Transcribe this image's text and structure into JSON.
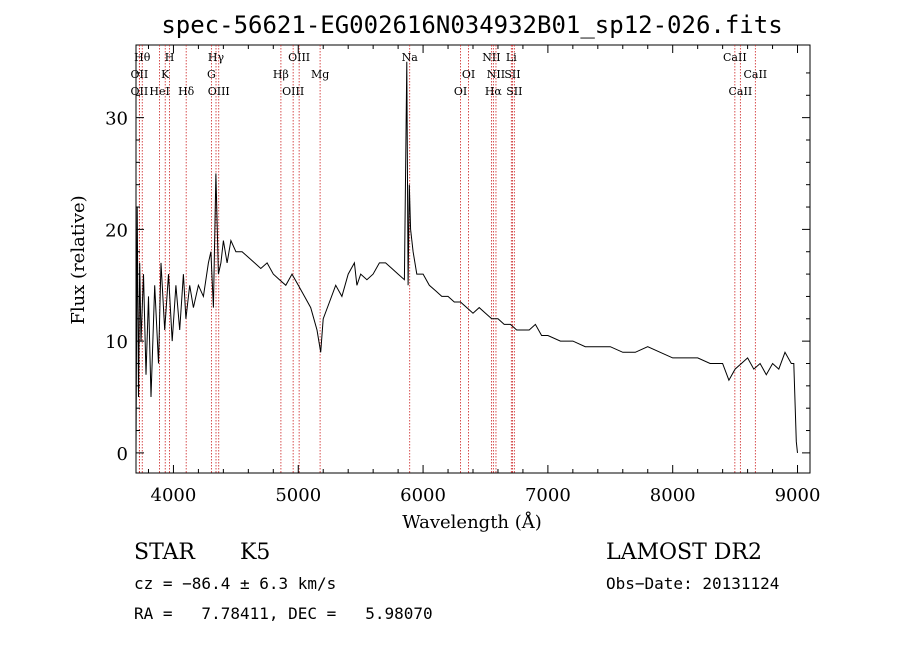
{
  "chart_data": {
    "type": "line",
    "title": "spec-56621-EG002616N034932B01_sp12-026.fits",
    "xlabel": "Wavelength (Å)",
    "ylabel": "Flux (relative)",
    "xlim": [
      3700,
      9100
    ],
    "ylim": [
      -1.8,
      36.5
    ],
    "x_ticks": [
      4000,
      5000,
      6000,
      7000,
      8000,
      9000
    ],
    "x_tick_labels": [
      "4000",
      "5000",
      "6000",
      "7000",
      "8000",
      "9000"
    ],
    "y_ticks": [
      0,
      10,
      20,
      30
    ],
    "y_tick_labels": [
      "0",
      "10",
      "20",
      "30"
    ],
    "grid": false,
    "series": [
      {
        "color": "#000000",
        "x": [
          3700,
          3710,
          3720,
          3730,
          3740,
          3760,
          3780,
          3800,
          3820,
          3850,
          3880,
          3900,
          3930,
          3960,
          3990,
          4020,
          4050,
          4080,
          4100,
          4130,
          4160,
          4200,
          4240,
          4280,
          4300,
          4320,
          4340,
          4360,
          4380,
          4400,
          4430,
          4460,
          4500,
          4550,
          4600,
          4650,
          4700,
          4750,
          4800,
          4850,
          4900,
          4950,
          5000,
          5050,
          5100,
          5150,
          5180,
          5200,
          5250,
          5300,
          5350,
          5400,
          5450,
          5470,
          5500,
          5550,
          5600,
          5650,
          5700,
          5750,
          5800,
          5850,
          5870,
          5880,
          5890,
          5900,
          5920,
          5950,
          6000,
          6050,
          6100,
          6150,
          6200,
          6250,
          6300,
          6350,
          6400,
          6450,
          6500,
          6550,
          6600,
          6650,
          6700,
          6750,
          6800,
          6850,
          6900,
          6950,
          7000,
          7100,
          7200,
          7300,
          7400,
          7500,
          7600,
          7700,
          7800,
          7900,
          8000,
          8100,
          8200,
          8300,
          8400,
          8450,
          8500,
          8550,
          8600,
          8650,
          8700,
          8750,
          8800,
          8850,
          8900,
          8950,
          8970,
          8990,
          9000
        ],
        "y": [
          0,
          22,
          5,
          17,
          10,
          16,
          7,
          14,
          5,
          15,
          8,
          17,
          11,
          16,
          10,
          15,
          11,
          16,
          12,
          15,
          13,
          15,
          14,
          17,
          18,
          13,
          25,
          16,
          17,
          19,
          17,
          19,
          18,
          18,
          17.5,
          17,
          16.5,
          17,
          16,
          15.5,
          15,
          16,
          15,
          14,
          13,
          11,
          9,
          12,
          13.5,
          15,
          14,
          16,
          17,
          15,
          16,
          15.5,
          16,
          17,
          17,
          16.5,
          16,
          15.5,
          35,
          15,
          24,
          20,
          18,
          16,
          16,
          15,
          14.5,
          14,
          14,
          13.5,
          13.5,
          13,
          12.5,
          13,
          12.5,
          12,
          12,
          11.5,
          11.5,
          11,
          11,
          11,
          11.5,
          10.5,
          10.5,
          10,
          10,
          9.5,
          9.5,
          9.5,
          9,
          9,
          9.5,
          9,
          8.5,
          8.5,
          8.5,
          8,
          8,
          6.5,
          7.5,
          8,
          8.5,
          7.5,
          8,
          7,
          8,
          7.5,
          9,
          8,
          8,
          1,
          0
        ]
      }
    ],
    "lines": [
      {
        "w": 3727,
        "lbl": "OII",
        "row": 1
      },
      {
        "w": 3727,
        "lbl": "OII",
        "row": 2
      },
      {
        "w": 3750,
        "lbl": "Hθ",
        "row": 0
      },
      {
        "w": 3889,
        "lbl": "HeI",
        "row": 2
      },
      {
        "w": 3934,
        "lbl": "K",
        "row": 1
      },
      {
        "w": 3969,
        "lbl": "H",
        "row": 0
      },
      {
        "w": 4102,
        "lbl": "Hδ",
        "row": 2
      },
      {
        "w": 4304,
        "lbl": "G",
        "row": 1
      },
      {
        "w": 4341,
        "lbl": "Hγ",
        "row": 0
      },
      {
        "w": 4363,
        "lbl": "OIII",
        "row": 2
      },
      {
        "w": 4861,
        "lbl": "Hβ",
        "row": 1
      },
      {
        "w": 4959,
        "lbl": "OIII",
        "row": 2
      },
      {
        "w": 5007,
        "lbl": "OIII",
        "row": 0
      },
      {
        "w": 5175,
        "lbl": "Mg",
        "row": 1
      },
      {
        "w": 5893,
        "lbl": "Na",
        "row": 0
      },
      {
        "w": 6300,
        "lbl": "OI",
        "row": 2
      },
      {
        "w": 6364,
        "lbl": "OI",
        "row": 1
      },
      {
        "w": 6548,
        "lbl": "NII",
        "row": 0
      },
      {
        "w": 6563,
        "lbl": "Hα",
        "row": 2
      },
      {
        "w": 6584,
        "lbl": "NII",
        "row": 1
      },
      {
        "w": 6707,
        "lbl": "Li",
        "row": 0
      },
      {
        "w": 6716,
        "lbl": "SII",
        "row": 1
      },
      {
        "w": 6731,
        "lbl": "SII",
        "row": 2
      },
      {
        "w": 8498,
        "lbl": "CaII",
        "row": 0
      },
      {
        "w": 8542,
        "lbl": "CaII",
        "row": 2
      },
      {
        "w": 8662,
        "lbl": "CaII",
        "row": 1
      }
    ]
  },
  "info": {
    "class": "STAR",
    "subclass": "K5",
    "survey": "LAMOST DR2",
    "cz": "cz = −86.4 ± 6.3 km/s",
    "obs_date": "Obs−Date: 20131124",
    "coords": "RA =   7.78411, DEC =   5.98070"
  }
}
